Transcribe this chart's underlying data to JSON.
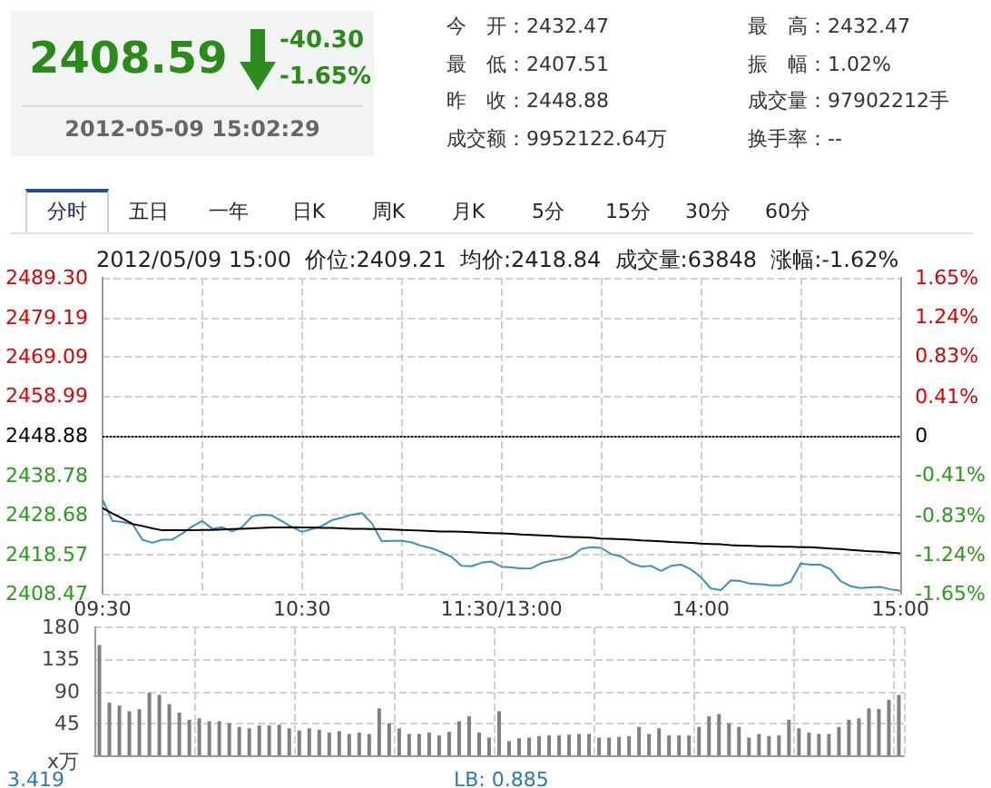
{
  "chart_data": [
    {
      "type": "other",
      "title": "2408.59",
      "annotations": [
        "-40.30",
        "-1.65%",
        "2012-05-09 15:02:29",
        "今　开：2432.47",
        "最　高：2432.47",
        "最　低：2407.51",
        "振　幅：1.02%",
        "昨　收：2448.88",
        "成交量：97902212手",
        "成交额：9952122.64万",
        "换手率：--",
        "分时",
        "五日",
        "一年",
        "日K",
        "周K",
        "月K",
        "5分",
        "15分",
        "30分",
        "60分"
      ]
    },
    {
      "type": "line",
      "title": "2012/05/09 15:00  价位:2409.21  均价:2418.84  成交量:63848  涨幅:-1.62%",
      "marker": "none",
      "grid": true,
      "categories": [
        "09:30",
        null,
        null,
        null,
        null,
        null,
        null,
        null,
        null,
        null,
        null,
        null,
        null,
        null,
        null,
        null,
        null,
        null,
        null,
        null,
        "10:30",
        null,
        null,
        null,
        null,
        null,
        null,
        null,
        null,
        null,
        null,
        null,
        null,
        null,
        null,
        null,
        null,
        null,
        null,
        null,
        "11:30/13:00",
        null,
        null,
        null,
        null,
        null,
        null,
        null,
        null,
        null,
        null,
        null,
        null,
        null,
        null,
        null,
        null,
        null,
        null,
        null,
        "14:00",
        null,
        null,
        null,
        null,
        null,
        null,
        null,
        null,
        null,
        null,
        null,
        null,
        null,
        null,
        null,
        null,
        null,
        null,
        null,
        "15:00"
      ],
      "ylim": [
        2408.47,
        2489.3
      ],
      "yticks": [
        2408.47,
        2418.57,
        2428.68,
        2438.78,
        2448.88,
        2458.99,
        2469.09,
        2479.19,
        {
          "value": 2489.3,
          "label": "2489.30"
        }
      ],
      "y2lim": [
        -1.65,
        1.65
      ],
      "y2ticks": [
        {
          "value": -1.65,
          "label": "-1.65%"
        },
        {
          "value": -1.24,
          "label": "-1.24%"
        },
        {
          "value": -0.83,
          "label": "-0.83%"
        },
        {
          "value": -0.41,
          "label": "-0.41%"
        },
        0,
        {
          "value": 0.41,
          "label": "0.41%"
        },
        {
          "value": 0.83,
          "label": "0.83%"
        },
        {
          "value": 1.24,
          "label": "1.24%"
        },
        {
          "value": 1.65,
          "label": "1.65%"
        }
      ],
      "ref_lines": [
        {
          "axis": "y",
          "value": 2448.88,
          "color": "#000000",
          "line_style": "dotted"
        }
      ],
      "series": [
        {
          "color": "#3a8fc8",
          "values": [
            2432.5,
            2427.1,
            2426.8,
            2426.3,
            2422.3,
            2421.5,
            2422.3,
            2422.3,
            2423.9,
            2425.7,
            2427.1,
            2425.1,
            2425.5,
            2424.4,
            2425.5,
            2428.3,
            2428.7,
            2428.5,
            2427.0,
            2425.5,
            2424.3,
            2425.0,
            2425.8,
            2427.3,
            2427.9,
            2428.7,
            2429.1,
            2426.5,
            2421.9,
            2422.0,
            2422.0,
            2421.6,
            2420.7,
            2420.1,
            2419.1,
            2417.9,
            2415.6,
            2415.5,
            2416.4,
            2416.7,
            2415.4,
            2415.2,
            2414.9,
            2415.0,
            2416.3,
            2416.9,
            2417.3,
            2418.0,
            2419.9,
            2420.4,
            2420.2,
            2418.6,
            2418.0,
            2416.3,
            2415.4,
            2415.6,
            2414.3,
            2415.6,
            2415.9,
            2414.7,
            2412.7,
            2409.8,
            2409.4,
            2411.9,
            2411.7,
            2411.0,
            2410.9,
            2410.6,
            2410.6,
            2411.5,
            2416.2,
            2415.9,
            2415.9,
            2414.7,
            2411.7,
            2410.4,
            2409.9,
            2410.1,
            2410.2,
            2409.6,
            2409.2
          ]
        },
        {
          "color": "#000000",
          "values": [
            2430.4,
            2429.0,
            2427.7,
            2426.3,
            2425.8,
            2425.2,
            2424.7,
            2424.7,
            2424.7,
            2424.7,
            2424.8,
            2424.8,
            2424.9,
            2425.0,
            2425.1,
            2425.2,
            2425.3,
            2425.4,
            2425.4,
            2425.5,
            2425.4,
            2425.4,
            2425.3,
            2425.3,
            2425.2,
            2425.1,
            2425.1,
            2425.0,
            2425.0,
            2424.9,
            2424.8,
            2424.7,
            2424.6,
            2424.5,
            2424.4,
            2424.4,
            2424.3,
            2424.2,
            2424.1,
            2424.0,
            2423.9,
            2423.8,
            2423.6,
            2423.5,
            2423.4,
            2423.3,
            2423.1,
            2423.0,
            2422.9,
            2422.8,
            2422.6,
            2422.5,
            2422.4,
            2422.3,
            2422.1,
            2422.0,
            2421.9,
            2421.7,
            2421.6,
            2421.5,
            2421.3,
            2421.2,
            2421.1,
            2420.9,
            2420.8,
            2420.7,
            2420.6,
            2420.6,
            2420.5,
            2420.5,
            2420.4,
            2420.4,
            2420.2,
            2420.0,
            2419.9,
            2419.7,
            2419.5,
            2419.3,
            2419.2,
            2419.0,
            2418.8
          ]
        }
      ]
    },
    {
      "type": "bar",
      "grid": true,
      "tick_labels": "y",
      "color": "#808080",
      "annotations": [
        "x万",
        "3.419",
        "LB: 0.885"
      ],
      "categories": [
        null,
        null,
        null,
        null,
        null,
        null,
        null,
        null,
        null,
        null,
        null,
        null,
        null,
        null,
        null,
        null,
        null,
        null,
        null,
        null,
        null,
        null,
        null,
        null,
        null,
        null,
        null,
        null,
        null,
        null,
        null,
        null,
        null,
        null,
        null,
        null,
        null,
        null,
        null,
        null,
        null,
        null,
        null,
        null,
        null,
        null,
        null,
        null,
        null,
        null,
        null,
        null,
        null,
        null,
        null,
        null,
        null,
        null,
        null,
        null,
        null,
        null,
        null,
        null,
        null,
        null,
        null,
        null,
        null,
        null,
        null,
        null,
        null,
        null,
        null,
        null,
        null,
        null,
        null,
        null,
        null
      ],
      "ylim": [
        0,
        180
      ],
      "yticks": [
        {
          "value": 0,
          "label": null
        },
        45,
        90,
        135,
        180
      ],
      "values": [
        155,
        74,
        70,
        62,
        65,
        88,
        85,
        72,
        60,
        50,
        52,
        48,
        48,
        45,
        40,
        38,
        42,
        42,
        43,
        38,
        35,
        38,
        36,
        32,
        34,
        30,
        32,
        30,
        66,
        45,
        38,
        30,
        30,
        32,
        28,
        33,
        48,
        55,
        32,
        25,
        62,
        20,
        24,
        25,
        27,
        28,
        28,
        29,
        30,
        30,
        25,
        25,
        26,
        27,
        40,
        30,
        38,
        28,
        28,
        28,
        40,
        55,
        58,
        45,
        40,
        25,
        30,
        27,
        28,
        50,
        38,
        32,
        30,
        30,
        40,
        50,
        52,
        66,
        65,
        78,
        85
      ]
    }
  ]
}
